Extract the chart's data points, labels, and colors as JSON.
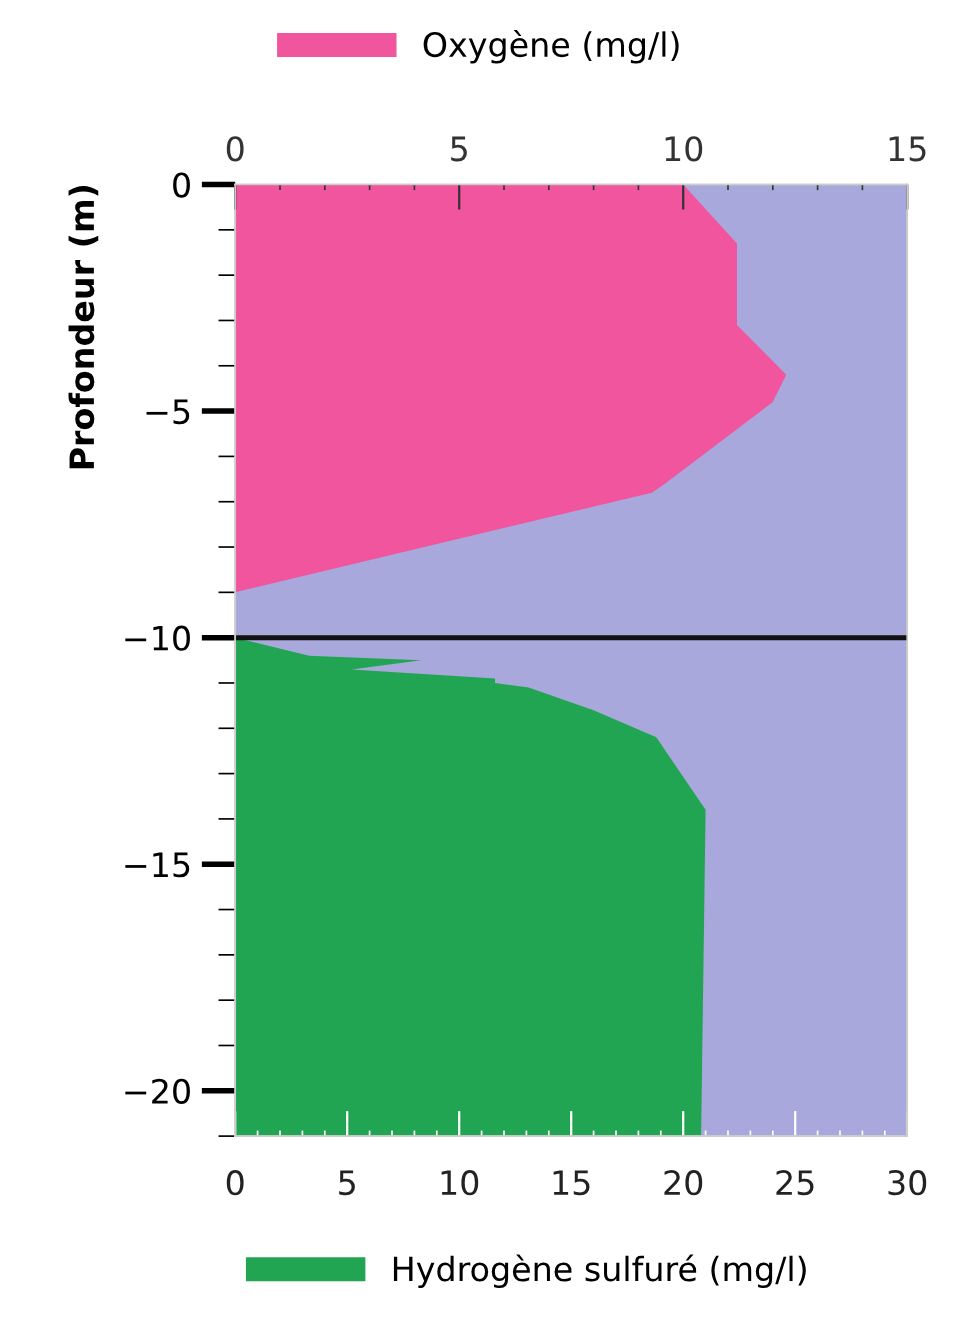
{
  "chart_data": {
    "type": "area",
    "orientation": "horizontal",
    "ylabel": "Profondeur (m)",
    "series": [
      {
        "name": "Oxygène (mg/l)",
        "color": "#f0559d",
        "axis": "x2",
        "x": [
          0,
          -1.3,
          -3.1,
          -4.2,
          -4.8,
          -6.6,
          -6.8,
          -9.0
        ],
        "values": [
          10.0,
          11.2,
          11.2,
          12.3,
          12.0,
          9.6,
          9.3,
          0
        ]
      },
      {
        "name": "Hydrogène sulfuré (mg/l)",
        "color": "#22a552",
        "x": [
          -10,
          -10.4,
          -10.5,
          -10.7,
          -10.9,
          -11.0,
          -11.1,
          -11.6,
          -12.2,
          -13.8,
          -21
        ],
        "values": [
          0,
          3.3,
          8.3,
          5.2,
          11.6,
          11.6,
          13.1,
          16.0,
          18.8,
          21.0,
          20.8
        ]
      }
    ],
    "xlim": [
      0,
      30
    ],
    "xticks": [
      0,
      5,
      10,
      15,
      20,
      25,
      30
    ],
    "x2lim": [
      0,
      15
    ],
    "x2ticks": [
      0,
      5,
      10,
      15
    ],
    "ylim": [
      -21,
      0
    ],
    "yticks": [
      0,
      -5,
      -10,
      -15,
      -20
    ],
    "ref_lines": [
      {
        "axis": "y",
        "value": -10,
        "color": "#111111"
      }
    ],
    "legend": "top",
    "grid": false
  }
}
